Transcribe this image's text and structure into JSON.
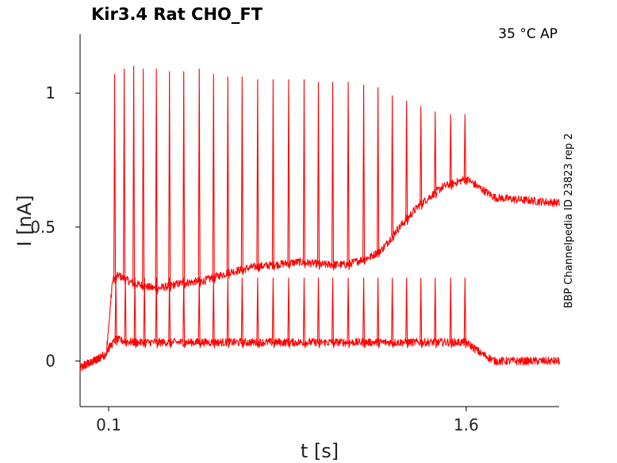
{
  "chart_data": {
    "type": "line",
    "title": "Kir3.4  Rat  CHO_FT",
    "annotation": "35 °C  AP",
    "side_label": "BBP Channelpedia ID 23823 rep 2",
    "xlabel": "t [s]",
    "ylabel": "I [nA]",
    "xlim": [
      -0.02,
      1.99
    ],
    "ylim": [
      -0.17,
      1.22
    ],
    "x_ticks": [
      {
        "value": 0.1,
        "label": "0.1"
      },
      {
        "value": 1.6,
        "label": "1.6"
      }
    ],
    "y_ticks": [
      {
        "value": 0,
        "label": "0"
      },
      {
        "value": 0.5,
        "label": "0.5"
      },
      {
        "value": 1,
        "label": "1"
      }
    ],
    "grid": false,
    "color": "#ff0000",
    "series": [
      {
        "spike_times": [
          0.125,
          0.165,
          0.205,
          0.245,
          0.3,
          0.355,
          0.415,
          0.48,
          0.54,
          0.6,
          0.66,
          0.725,
          0.79,
          0.855,
          0.92,
          0.98,
          1.04,
          1.105,
          1.17,
          1.23,
          1.29,
          1.35,
          1.41,
          1.47,
          1.535,
          1.595
        ],
        "spike_peaks": [
          1.07,
          1.09,
          1.1,
          1.09,
          1.09,
          1.08,
          1.08,
          1.09,
          1.07,
          1.06,
          1.06,
          1.05,
          1.05,
          1.05,
          1.05,
          1.04,
          1.04,
          1.04,
          1.03,
          1.02,
          0.99,
          0.97,
          0.95,
          0.93,
          0.92,
          0.92
        ],
        "baseline": [
          [
            -0.02,
            -0.03
          ],
          [
            0.09,
            0.03
          ],
          [
            0.115,
            0.3
          ],
          [
            0.14,
            0.32
          ],
          [
            0.2,
            0.29
          ],
          [
            0.3,
            0.27
          ],
          [
            0.4,
            0.29
          ],
          [
            0.5,
            0.3
          ],
          [
            0.6,
            0.33
          ],
          [
            0.7,
            0.35
          ],
          [
            0.8,
            0.36
          ],
          [
            0.9,
            0.37
          ],
          [
            1.0,
            0.36
          ],
          [
            1.1,
            0.36
          ],
          [
            1.2,
            0.39
          ],
          [
            1.25,
            0.42
          ],
          [
            1.3,
            0.48
          ],
          [
            1.4,
            0.58
          ],
          [
            1.5,
            0.65
          ],
          [
            1.6,
            0.68
          ],
          [
            1.65,
            0.65
          ],
          [
            1.72,
            0.61
          ],
          [
            1.99,
            0.59
          ]
        ]
      },
      {
        "spike_times": [
          0.13,
          0.17,
          0.21,
          0.25,
          0.3,
          0.355,
          0.415,
          0.48,
          0.54,
          0.6,
          0.66,
          0.725,
          0.79,
          0.855,
          0.92,
          0.98,
          1.04,
          1.105,
          1.17,
          1.23,
          1.29,
          1.35,
          1.41,
          1.47,
          1.535,
          1.595
        ],
        "spike_peaks": [
          0.31,
          0.31,
          0.31,
          0.31,
          0.31,
          0.31,
          0.31,
          0.31,
          0.31,
          0.31,
          0.31,
          0.31,
          0.31,
          0.31,
          0.31,
          0.31,
          0.31,
          0.31,
          0.31,
          0.31,
          0.31,
          0.31,
          0.31,
          0.31,
          0.31,
          0.31
        ],
        "baseline": [
          [
            -0.02,
            -0.02
          ],
          [
            0.08,
            0.02
          ],
          [
            0.1,
            0.05
          ],
          [
            0.13,
            0.08
          ],
          [
            0.2,
            0.07
          ],
          [
            0.5,
            0.07
          ],
          [
            1.0,
            0.07
          ],
          [
            1.5,
            0.07
          ],
          [
            1.6,
            0.07
          ],
          [
            1.66,
            0.03
          ],
          [
            1.72,
            0.0
          ],
          [
            1.99,
            0.0
          ]
        ]
      }
    ]
  }
}
